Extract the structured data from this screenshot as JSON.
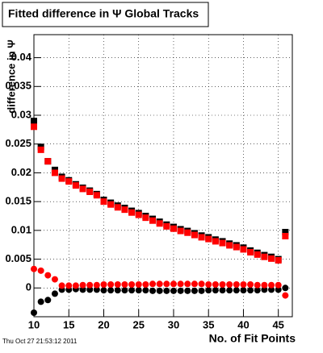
{
  "chart_data": {
    "type": "scatter",
    "title": "Fitted difference in  Ψ   Global Tracks",
    "y_label": "difference in Ψ",
    "x_label": "No. of Fit Points",
    "timestamp": "Thu Oct 27 21:53:12 2011",
    "x": [
      10,
      11,
      12,
      13,
      14,
      15,
      16,
      17,
      18,
      19,
      20,
      21,
      22,
      23,
      24,
      25,
      26,
      27,
      28,
      29,
      30,
      31,
      32,
      33,
      34,
      35,
      36,
      37,
      38,
      39,
      40,
      41,
      42,
      43,
      44,
      45,
      46
    ],
    "series": [
      {
        "color": "#000000",
        "marker": "square",
        "values": [
          0.029,
          0.0245,
          0.022,
          0.0205,
          0.0193,
          0.0187,
          0.018,
          0.0174,
          0.0169,
          0.0163,
          0.0153,
          0.0148,
          0.0143,
          0.0139,
          0.0134,
          0.013,
          0.0125,
          0.012,
          0.0115,
          0.011,
          0.0106,
          0.0102,
          0.0099,
          0.0095,
          0.0091,
          0.0088,
          0.0084,
          0.0081,
          0.0077,
          0.0074,
          0.007,
          0.0065,
          0.0061,
          0.0057,
          0.0054,
          0.005,
          0.0097
        ]
      },
      {
        "color": "#ff0000",
        "marker": "square",
        "values": [
          0.028,
          0.024,
          0.022,
          0.02,
          0.019,
          0.0185,
          0.0178,
          0.0172,
          0.0167,
          0.0161,
          0.015,
          0.0145,
          0.014,
          0.0136,
          0.0131,
          0.0127,
          0.0122,
          0.0117,
          0.0112,
          0.0107,
          0.0103,
          0.0099,
          0.0096,
          0.0092,
          0.0088,
          0.0085,
          0.0081,
          0.0078,
          0.0074,
          0.0071,
          0.0067,
          0.0062,
          0.0058,
          0.0054,
          0.0051,
          0.0048,
          0.009
        ]
      },
      {
        "color": "#000000",
        "marker": "circle",
        "values": [
          -0.0043,
          -0.0024,
          -0.0021,
          -0.001,
          -0.0003,
          -0.0003,
          -0.0002,
          -0.0003,
          -0.0003,
          -0.0003,
          -0.0004,
          -0.0004,
          -0.0004,
          -0.0004,
          -0.0004,
          -0.0004,
          -0.0004,
          -0.0005,
          -0.0005,
          -0.0005,
          -0.0005,
          -0.0005,
          -0.0005,
          -0.0005,
          -0.0005,
          -0.0004,
          -0.0004,
          -0.0004,
          -0.0004,
          -0.0004,
          -0.0004,
          -0.0004,
          -0.0004,
          -0.0003,
          -0.0003,
          -0.0003,
          0.0
        ]
      },
      {
        "color": "#ff0000",
        "marker": "circle",
        "values": [
          0.0033,
          0.003,
          0.0022,
          0.0015,
          0.0004,
          0.0004,
          0.0004,
          0.0005,
          0.0005,
          0.0005,
          0.0006,
          0.0006,
          0.0006,
          0.0006,
          0.0006,
          0.0006,
          0.0006,
          0.0007,
          0.0007,
          0.0007,
          0.0007,
          0.0007,
          0.0007,
          0.0007,
          0.0007,
          0.0006,
          0.0006,
          0.0006,
          0.0006,
          0.0006,
          0.0006,
          0.0006,
          0.0005,
          0.0005,
          0.0005,
          0.0005,
          -0.0013
        ]
      }
    ],
    "xlim": [
      10,
      47
    ],
    "xticks": [
      10,
      15,
      20,
      25,
      30,
      35,
      40,
      45
    ],
    "ylim": [
      -0.005,
      0.044
    ],
    "yticks": [
      0,
      0.005,
      0.01,
      0.015,
      0.02,
      0.025,
      0.03,
      0.035,
      0.04
    ],
    "grid": true
  }
}
